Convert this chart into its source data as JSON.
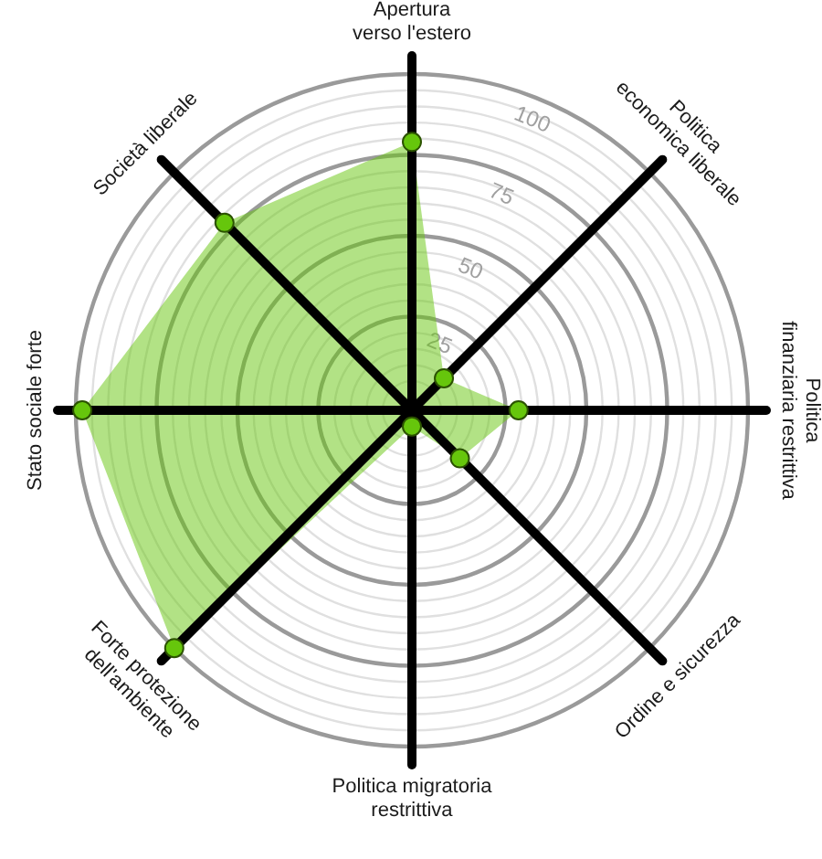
{
  "chart_data": {
    "type": "radar",
    "categories": [
      "Apertura\nverso l'estero",
      "Politica\neconomica liberale",
      "Politica\nfinanziaria restrittiva",
      "Ordine e sicurezza",
      "Politica migratoria\nrestrittiva",
      "Forte protezione\ndell'ambiente",
      "Stato sociale forte",
      "Società liberale"
    ],
    "series": [
      {
        "color": "#66c60c",
        "values": [
          79,
          10,
          29,
          17,
          1,
          100,
          98,
          78
        ]
      }
    ],
    "ylim": [
      -4,
      100
    ],
    "yticks": [
      25,
      50,
      75,
      100
    ],
    "grid": true,
    "marker": "circle"
  }
}
